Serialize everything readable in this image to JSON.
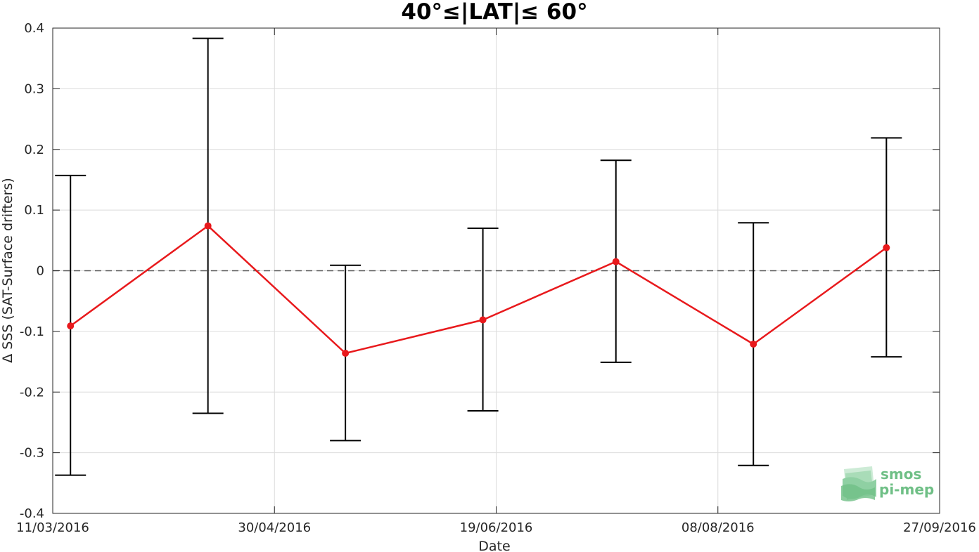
{
  "chart_data": {
    "type": "line",
    "title": "40°≤|LAT|≤ 60°",
    "xlabel": "Date",
    "ylabel": "Δ SSS (SAT-Surface drifters)",
    "xlim": [
      "2016-03-11",
      "2016-09-27"
    ],
    "ylim": [
      -0.4,
      0.4
    ],
    "x_ticks": [
      "11/03/2016",
      "30/04/2016",
      "19/06/2016",
      "08/08/2016",
      "27/09/2016"
    ],
    "y_ticks": [
      "0.4",
      "0.3",
      "0.2",
      "0.1",
      "0",
      "-0.1",
      "-0.2",
      "-0.3",
      "-0.4"
    ],
    "grid": true,
    "reference_line": {
      "y": 0,
      "style": "dashed",
      "color": "#595959"
    },
    "series": [
      {
        "color": "#e8191c",
        "error_bar_color": "#000000",
        "points": [
          {
            "x": "2016-03-15",
            "y": -0.091,
            "upper": 0.157,
            "lower": -0.337
          },
          {
            "x": "2016-04-15",
            "y": 0.074,
            "upper": 0.383,
            "lower": -0.235
          },
          {
            "x": "2016-05-16",
            "y": -0.136,
            "upper": 0.009,
            "lower": -0.28
          },
          {
            "x": "2016-06-16",
            "y": -0.081,
            "upper": 0.07,
            "lower": -0.231
          },
          {
            "x": "2016-07-16",
            "y": 0.015,
            "upper": 0.182,
            "lower": -0.151
          },
          {
            "x": "2016-08-16",
            "y": -0.121,
            "upper": 0.079,
            "lower": -0.321
          },
          {
            "x": "2016-09-15",
            "y": 0.038,
            "upper": 0.219,
            "lower": -0.142
          }
        ]
      }
    ]
  },
  "logo": {
    "line1": "smos",
    "line2": "pi-mep",
    "color": "#6fbf86"
  }
}
